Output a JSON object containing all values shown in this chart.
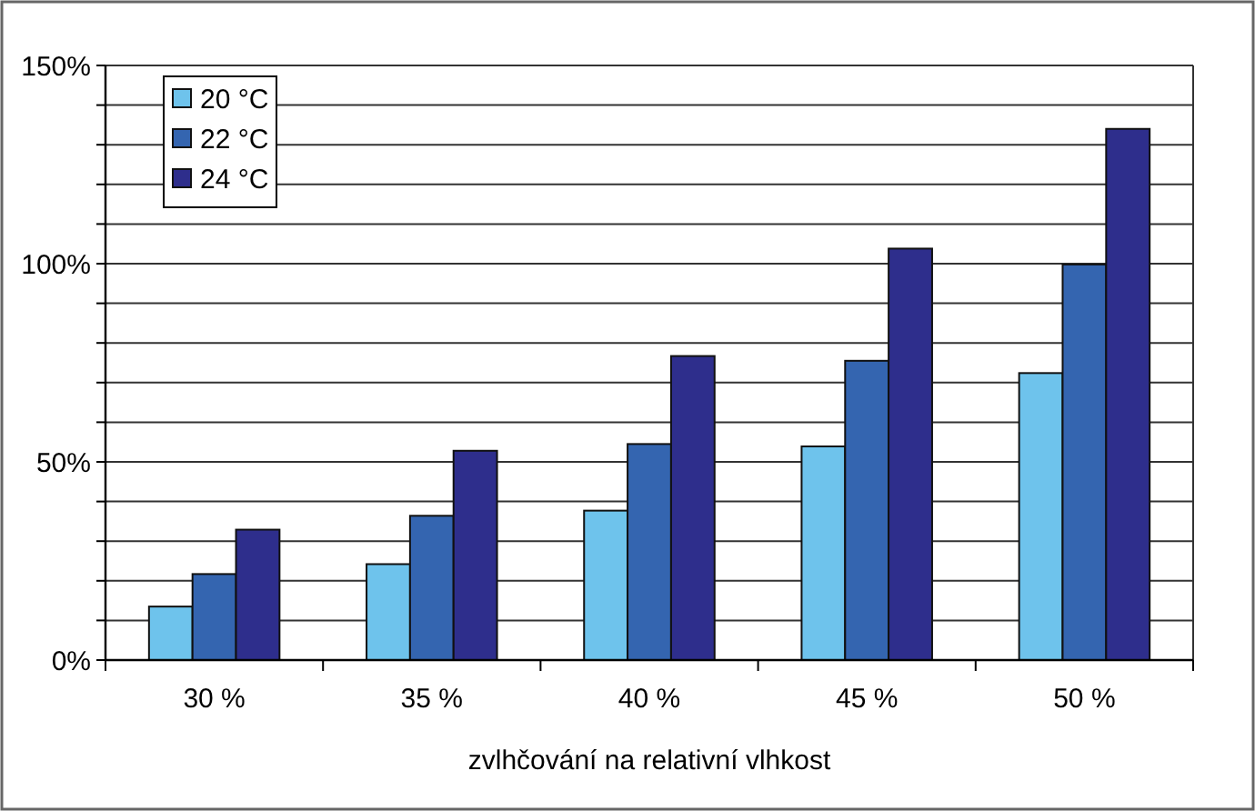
{
  "chart_data": {
    "type": "bar",
    "xlabel": "zvlhčování na relativní vlhkost",
    "categories": [
      "30 %",
      "35 %",
      "40 %",
      "45 %",
      "50 %"
    ],
    "series": [
      {
        "name": "20 °C",
        "color": "#6ec3ec",
        "values": [
          13.5,
          24.2,
          37.7,
          53.9,
          72.4
        ]
      },
      {
        "name": "22 °C",
        "color": "#3465b0",
        "values": [
          21.7,
          36.4,
          54.5,
          75.5,
          99.8
        ]
      },
      {
        "name": "24 °C",
        "color": "#2e2e8c",
        "values": [
          32.9,
          52.8,
          76.7,
          103.8,
          134
        ]
      }
    ],
    "ylim": [
      0,
      150
    ],
    "yticks": [
      {
        "value": 0,
        "label": "0%"
      },
      {
        "value": 10,
        "label": null
      },
      {
        "value": 20,
        "label": null
      },
      {
        "value": 30,
        "label": null
      },
      {
        "value": 40,
        "label": null
      },
      {
        "value": 50,
        "label": "50%"
      },
      {
        "value": 60,
        "label": null
      },
      {
        "value": 70,
        "label": null
      },
      {
        "value": 80,
        "label": null
      },
      {
        "value": 90,
        "label": null
      },
      {
        "value": 100,
        "label": "100%"
      },
      {
        "value": 110,
        "label": null
      },
      {
        "value": 120,
        "label": null
      },
      {
        "value": 130,
        "label": null
      },
      {
        "value": 140,
        "label": null
      },
      {
        "value": 150,
        "label": "150%"
      }
    ],
    "grid": "y",
    "legend": "top left"
  }
}
